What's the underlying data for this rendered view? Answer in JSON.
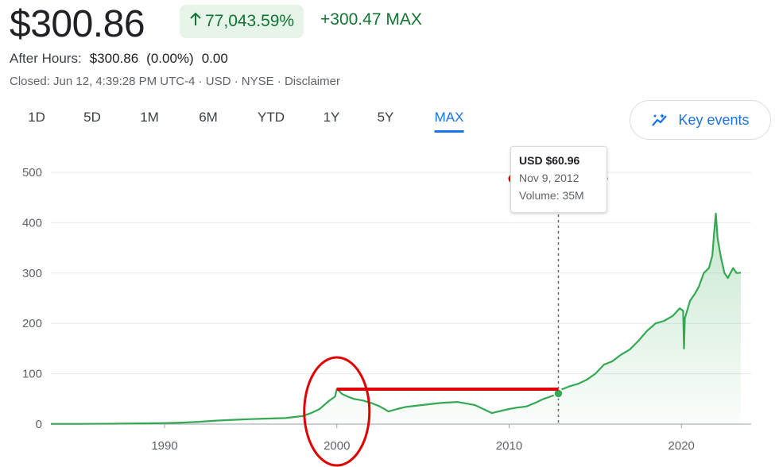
{
  "header": {
    "price": "$300.86",
    "change_pct": "77,043.59%",
    "change_abs": "+300.47 MAX",
    "after_hours_label": "After Hours:",
    "after_hours_price": "$300.86",
    "after_hours_pct": "(0.00%)",
    "after_hours_abs": "0.00",
    "closed_info": "Closed: Jun 12, 4:39:28 PM UTC-4 · USD · NYSE · Disclaimer"
  },
  "range_tabs": [
    {
      "label": "1D",
      "active": false
    },
    {
      "label": "5D",
      "active": false
    },
    {
      "label": "1M",
      "active": false
    },
    {
      "label": "6M",
      "active": false
    },
    {
      "label": "YTD",
      "active": false
    },
    {
      "label": "1Y",
      "active": false
    },
    {
      "label": "5Y",
      "active": false
    },
    {
      "label": "MAX",
      "active": true
    }
  ],
  "key_events": {
    "label": "Key events",
    "icon": "sparkle-trend-icon"
  },
  "tooltip": {
    "price": "USD $60.96",
    "date": "Nov 9, 2012",
    "volume_label": "Volume:",
    "volume": "35M"
  },
  "colors": {
    "line": "#34a853",
    "positive_text": "#137333",
    "accent": "#1a73e8",
    "annotation": "#e00000",
    "grid": "#e8eaed"
  },
  "chart_data": {
    "type": "area",
    "title": "",
    "xlabel": "",
    "ylabel": "",
    "xlim": [
      1983.4,
      2023.45
    ],
    "ylim": [
      0,
      500
    ],
    "y_ticks": [
      0,
      100,
      200,
      300,
      400,
      500
    ],
    "x_ticks": [
      1990,
      2000,
      2010,
      2020
    ],
    "grid": true,
    "series": [
      {
        "x": [
          1983.4,
          1985,
          1987,
          1988,
          1989,
          1990,
          1991,
          1992,
          1993,
          1994,
          1995,
          1996,
          1997,
          1998,
          1998.5,
          1999,
          1999.5,
          1999.9,
          2000.0,
          2000.3,
          2000.6,
          2001,
          2001.5,
          2002,
          2002.5,
          2003,
          2003.5,
          2004,
          2005,
          2006,
          2007,
          2008,
          2008.5,
          2009,
          2009.5,
          2010,
          2010.5,
          2011,
          2011.5,
          2012,
          2012.5,
          2012.86,
          2013,
          2013.5,
          2014,
          2014.5,
          2015,
          2015.5,
          2016,
          2016.5,
          2017,
          2017.5,
          2018,
          2018.5,
          2019,
          2019.5,
          2019.9,
          2020.1,
          2020.15,
          2020.2,
          2020.5,
          2020.8,
          2021,
          2021.3,
          2021.6,
          2021.8,
          2021.9,
          2022.0,
          2022.1,
          2022.3,
          2022.5,
          2022.7,
          2023.0,
          2023.2,
          2023.45
        ],
        "y": [
          0.4,
          0.5,
          0.8,
          1.2,
          1.6,
          2.0,
          3.0,
          4.5,
          7.0,
          8.5,
          10.0,
          11.0,
          12.0,
          16.0,
          22.0,
          30.0,
          45.0,
          55.0,
          70.0,
          60.0,
          55.0,
          50.0,
          47.0,
          42.0,
          35.0,
          25.0,
          30.0,
          34.0,
          38.0,
          42.0,
          44.0,
          38.0,
          30.0,
          22.0,
          26.0,
          30.0,
          33.0,
          35.0,
          42.0,
          50.0,
          56.0,
          60.96,
          68.0,
          75.0,
          80.0,
          88.0,
          100.0,
          118.0,
          125.0,
          138.0,
          148.0,
          165.0,
          185.0,
          200.0,
          205.0,
          215.0,
          230.0,
          225.0,
          150.0,
          210.0,
          245.0,
          260.0,
          272.0,
          300.0,
          310.0,
          335.0,
          380.0,
          418.0,
          370.0,
          330.0,
          300.0,
          290.0,
          310.0,
          300.0,
          300.86
        ]
      }
    ],
    "annotations": [
      {
        "type": "marker",
        "x": 2012.86,
        "y": 60.96,
        "label": ""
      }
    ]
  }
}
